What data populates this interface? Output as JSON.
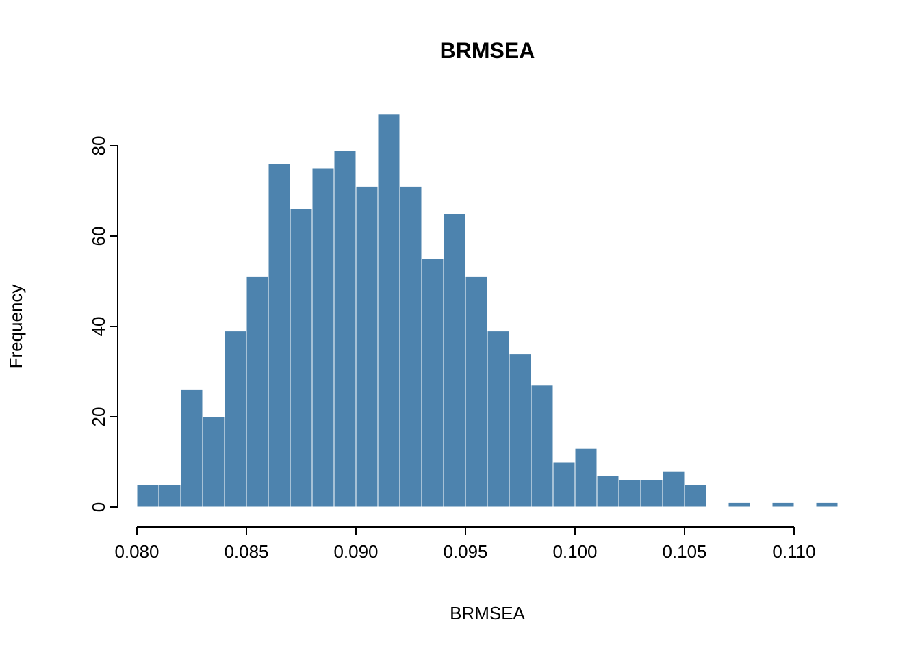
{
  "page": {
    "background": "#ffffff"
  },
  "chart_data": {
    "type": "bar",
    "subtype": "histogram",
    "title": "BRMSEA",
    "xlabel": "BRMSEA",
    "ylabel": "Frequency",
    "bin_start": 0.08,
    "bin_width": 0.001,
    "counts": [
      5,
      5,
      26,
      20,
      39,
      51,
      76,
      66,
      75,
      79,
      71,
      87,
      71,
      55,
      65,
      51,
      39,
      34,
      27,
      10,
      13,
      7,
      6,
      6,
      8,
      5,
      0,
      1,
      0,
      1,
      0,
      1
    ],
    "x_tick_values": [
      0.08,
      0.085,
      0.09,
      0.095,
      0.1,
      0.105,
      0.11
    ],
    "x_tick_labels": [
      "0.080",
      "0.085",
      "0.090",
      "0.095",
      "0.100",
      "0.105",
      "0.110"
    ],
    "y_tick_values": [
      0,
      20,
      40,
      60,
      80
    ],
    "y_tick_labels": [
      "0",
      "20",
      "40",
      "60",
      "80"
    ],
    "xlim": [
      0.08,
      0.112
    ],
    "ylim": [
      0,
      90
    ],
    "grid": false,
    "bar_color": "#4d83ae",
    "bar_border_color": "#ffffff",
    "axis_color": "#000000"
  }
}
